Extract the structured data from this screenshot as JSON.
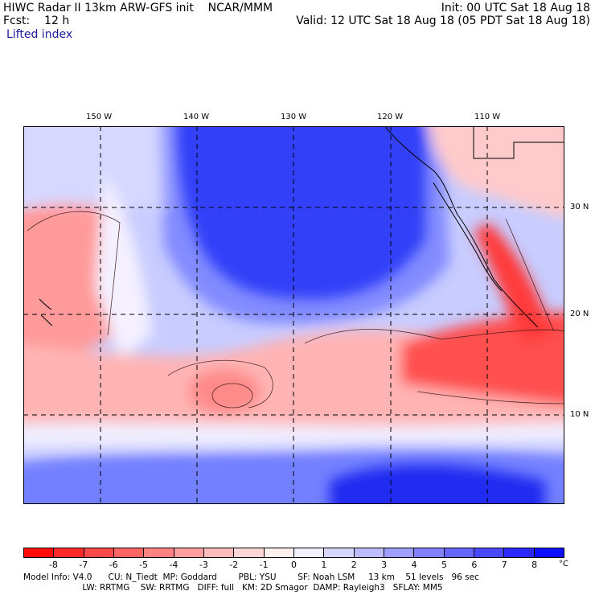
{
  "header": {
    "line1_left": "HIWC Radar II 13km ARW-GFS init    NCAR/MMM",
    "line1_right": "Init: 00 UTC Sat 18 Aug 18",
    "line2_left": "Fcst:    12 h",
    "line2_right": "Valid: 12 UTC Sat 18 Aug 18 (05 PDT Sat 18 Aug 18)",
    "field_name": "Lifted index"
  },
  "map": {
    "lon_labels": [
      "150 W",
      "140 W",
      "130 W",
      "120 W",
      "110 W"
    ],
    "lat_labels": [
      "30 N",
      "20 N",
      "10 N"
    ]
  },
  "colorbar": {
    "tick_labels": [
      "-8",
      "-7",
      "-6",
      "-5",
      "-4",
      "-3",
      "-2",
      "-1",
      "0",
      "1",
      "2",
      "3",
      "4",
      "5",
      "6",
      "7",
      "8"
    ],
    "unit": "°C",
    "colors": [
      "#ff0d0d",
      "#ff2a2a",
      "#ff4848",
      "#ff6565",
      "#ff8282",
      "#ff9f9f",
      "#ffbcbc",
      "#ffd6d6",
      "#fff0f0",
      "#f0f0ff",
      "#d6d6ff",
      "#bcbcff",
      "#9f9fff",
      "#8282ff",
      "#6565ff",
      "#4848ff",
      "#2a2aff",
      "#0d0dff"
    ]
  },
  "model_info": {
    "line1": "Model Info: V4.0      CU: N_Tiedt  MP: Goddard        PBL: YSU        SF: Noah LSM     13 km    51 levels   96 sec",
    "line2": "                      LW: RRTMG    SW: RRTMG   DIFF: full   KM: 2D Smagor  DAMP: Rayleigh3   SFLAY: MM5"
  }
}
